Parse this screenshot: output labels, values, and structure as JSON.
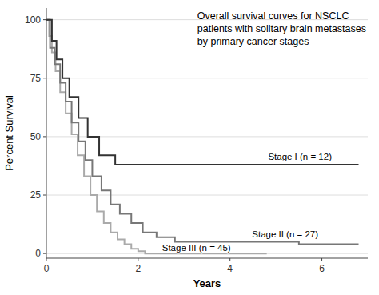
{
  "chart_data": {
    "type": "step",
    "title": "Overall survival curves for NSCLC\npatients with solitary brain metastases\nby primary cancer stages",
    "xlabel": "Years",
    "ylabel": "Percent Survival",
    "xlim": [
      0,
      7
    ],
    "ylim": [
      -2,
      105
    ],
    "xticks": [
      0,
      2,
      4,
      6
    ],
    "yticks": [
      0,
      25,
      50,
      75,
      100
    ],
    "grid": true,
    "series": [
      {
        "name": "Stage I (n = 12)",
        "color": "#333333",
        "x": [
          0,
          0.05,
          0.12,
          0.22,
          0.35,
          0.5,
          0.7,
          0.9,
          1.15,
          1.5,
          1.9,
          2.5,
          3.0,
          6.8
        ],
        "values": [
          100,
          100,
          91,
          83,
          75,
          67,
          58,
          50,
          42,
          38,
          38,
          38,
          38,
          38
        ]
      },
      {
        "name": "Stage II (n = 27)",
        "color": "#777777",
        "x": [
          0,
          0.08,
          0.18,
          0.3,
          0.42,
          0.55,
          0.7,
          0.85,
          1.0,
          1.2,
          1.4,
          1.6,
          1.85,
          2.1,
          2.4,
          2.8,
          3.5,
          4.6,
          5.5,
          6.8
        ],
        "values": [
          100,
          88,
          81,
          73,
          65,
          56,
          48,
          40,
          33,
          27,
          21,
          17,
          13,
          9,
          7,
          5,
          5,
          5,
          4,
          4
        ]
      },
      {
        "name": "Stage III (n = 45)",
        "color": "#aaaaaa",
        "x": [
          0,
          0.06,
          0.12,
          0.2,
          0.3,
          0.42,
          0.55,
          0.68,
          0.82,
          0.96,
          1.1,
          1.25,
          1.4,
          1.55,
          1.7,
          1.85,
          2.0,
          2.15,
          2.3,
          2.5,
          4.8
        ],
        "values": [
          100,
          93,
          86,
          78,
          69,
          60,
          51,
          42,
          33,
          25,
          18,
          13,
          9,
          6,
          4,
          2,
          1,
          0,
          0,
          0,
          0
        ]
      }
    ]
  }
}
